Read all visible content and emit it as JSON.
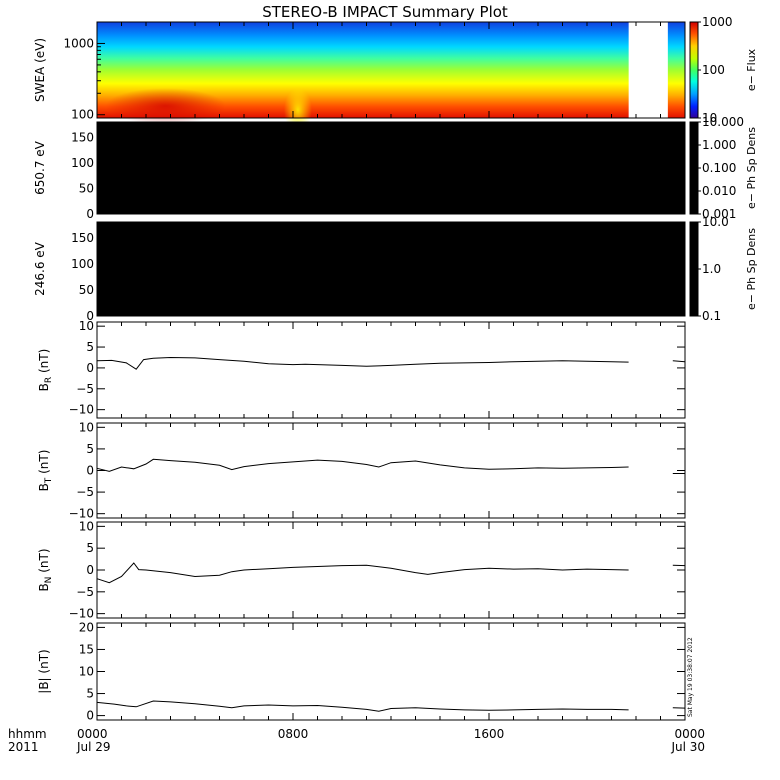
{
  "title": "STEREO-B IMPACT Summary Plot",
  "footer": {
    "hhmm": "hhmm",
    "year": "2011",
    "timestamp": "Sat May 19 03:38:07 2012"
  },
  "colors": {
    "background": "#ffffff",
    "axes": "#000000",
    "trace": "#000000",
    "spectrogram_gap": "#ffffff",
    "colormap": [
      "#1a00b0",
      "#0040ff",
      "#00b8ff",
      "#40ffb0",
      "#a0ff20",
      "#ffff00",
      "#ffa000",
      "#ff3000",
      "#d00000"
    ]
  },
  "chart_data": [
    {
      "type": "heatmap",
      "name": "swea-spectrogram",
      "ylabel": "SWEA (eV)",
      "yscale": "log",
      "ylim": [
        90,
        2000
      ],
      "yticks": [
        "100",
        "1000"
      ],
      "colorbar_label": "e− Flux",
      "colorbar_scale": "log",
      "colorbar_ticks": [
        "10",
        "100",
        "1000"
      ],
      "colorbar_range": [
        10,
        3000
      ],
      "data_gap": [
        21.7,
        23.3
      ]
    },
    {
      "type": "heatmap",
      "name": "pad-650",
      "ylabel": "650.7 eV",
      "ylim": [
        0,
        180
      ],
      "yticks": [
        "0",
        "50",
        "100",
        "150"
      ],
      "fill": "black",
      "colorbar_label": "e− Ph Sp Dens",
      "colorbar_scale": "log",
      "colorbar_ticks": [
        "0.001",
        "0.010",
        "0.100",
        "1.000",
        "10.000"
      ]
    },
    {
      "type": "heatmap",
      "name": "pad-246",
      "ylabel": "246.6 eV",
      "ylim": [
        0,
        180
      ],
      "yticks": [
        "0",
        "50",
        "100",
        "150"
      ],
      "fill": "black",
      "colorbar_label": "e− Ph Sp Dens",
      "colorbar_scale": "log",
      "colorbar_ticks": [
        "0.1",
        "1.0",
        "10.0"
      ]
    },
    {
      "type": "line",
      "name": "br",
      "ylabel_main": "B",
      "ylabel_sub": "R",
      "ylabel_unit": "(nT)",
      "ylim": [
        -12,
        11
      ],
      "yticks": [
        "−10",
        "−5",
        "0",
        "5",
        "10"
      ],
      "x": [
        0,
        0.6,
        1.2,
        1.6,
        1.9,
        2.3,
        3,
        4,
        5,
        6,
        7,
        8,
        8.5,
        9,
        10,
        11,
        12,
        13,
        14,
        15,
        16,
        17,
        18,
        19,
        20,
        21,
        21.7,
        23.5,
        24
      ],
      "y": [
        1.7,
        1.8,
        1.2,
        -0.3,
        2.0,
        2.3,
        2.5,
        2.4,
        2.0,
        1.6,
        1.0,
        0.8,
        0.9,
        0.8,
        0.6,
        0.4,
        0.6,
        0.9,
        1.1,
        1.2,
        1.3,
        1.5,
        1.6,
        1.7,
        1.6,
        1.5,
        1.4,
        1.7,
        1.5
      ]
    },
    {
      "type": "line",
      "name": "bt",
      "ylabel_main": "B",
      "ylabel_sub": "T",
      "ylabel_unit": "(nT)",
      "ylim": [
        -11,
        11
      ],
      "yticks": [
        "−10",
        "−5",
        "0",
        "5",
        "10"
      ],
      "x": [
        0,
        0.5,
        1,
        1.5,
        2,
        2.3,
        3,
        4,
        5,
        5.5,
        6,
        7,
        8,
        9,
        10,
        11,
        11.5,
        12,
        13,
        14,
        15,
        16,
        17,
        18,
        19,
        20,
        21,
        21.7,
        23.5,
        24
      ],
      "y": [
        0.5,
        -0.2,
        0.8,
        0.4,
        1.5,
        2.6,
        2.3,
        1.9,
        1.2,
        0.2,
        0.9,
        1.6,
        2.0,
        2.4,
        2.1,
        1.4,
        0.8,
        1.8,
        2.2,
        1.3,
        0.6,
        0.3,
        0.4,
        0.6,
        0.5,
        0.6,
        0.7,
        0.8,
        -0.7,
        -0.7
      ]
    },
    {
      "type": "line",
      "name": "bn",
      "ylabel_main": "B",
      "ylabel_sub": "N",
      "ylabel_unit": "(nT)",
      "ylim": [
        -11,
        11
      ],
      "yticks": [
        "−10",
        "−5",
        "0",
        "5",
        "10"
      ],
      "x": [
        0,
        0.5,
        1,
        1.5,
        1.7,
        2,
        3,
        4,
        5,
        5.5,
        6,
        7,
        8,
        9,
        10,
        11,
        12,
        13,
        13.5,
        14,
        15,
        16,
        17,
        18,
        19,
        20,
        21,
        21.7,
        23.5,
        24
      ],
      "y": [
        -2.0,
        -2.9,
        -1.5,
        1.6,
        0.1,
        0.0,
        -0.6,
        -1.5,
        -1.2,
        -0.4,
        0.0,
        0.3,
        0.6,
        0.8,
        1.0,
        1.1,
        0.4,
        -0.6,
        -1.0,
        -0.6,
        0.1,
        0.4,
        0.2,
        0.3,
        0.0,
        0.2,
        0.1,
        0.0,
        1.1,
        1.0
      ]
    },
    {
      "type": "line",
      "name": "bmag",
      "ylabel_main": "|B| (nT)",
      "ylim": [
        -1,
        21
      ],
      "yticks": [
        "0",
        "5",
        "10",
        "15",
        "20"
      ],
      "x": [
        0,
        0.7,
        1.2,
        1.6,
        2.3,
        3,
        4,
        5,
        5.5,
        6,
        7,
        8,
        9,
        10,
        11,
        11.5,
        12,
        13,
        14,
        15,
        16,
        17,
        18,
        19,
        20,
        21,
        21.7,
        23.5,
        24
      ],
      "y": [
        3.0,
        2.6,
        2.2,
        2.0,
        3.3,
        3.1,
        2.7,
        2.1,
        1.8,
        2.2,
        2.4,
        2.2,
        2.3,
        1.9,
        1.4,
        1.0,
        1.6,
        1.8,
        1.5,
        1.3,
        1.2,
        1.3,
        1.4,
        1.5,
        1.4,
        1.4,
        1.3,
        1.8,
        1.7
      ]
    }
  ],
  "x_axis": {
    "range_hours": [
      0,
      24
    ],
    "major_ticks": [
      {
        "hour": 0,
        "label": "0000",
        "sublabel": "Jul 29"
      },
      {
        "hour": 8,
        "label": "0800",
        "sublabel": ""
      },
      {
        "hour": 16,
        "label": "1600",
        "sublabel": ""
      },
      {
        "hour": 24,
        "label": "0000",
        "sublabel": "Jul 30"
      }
    ]
  }
}
